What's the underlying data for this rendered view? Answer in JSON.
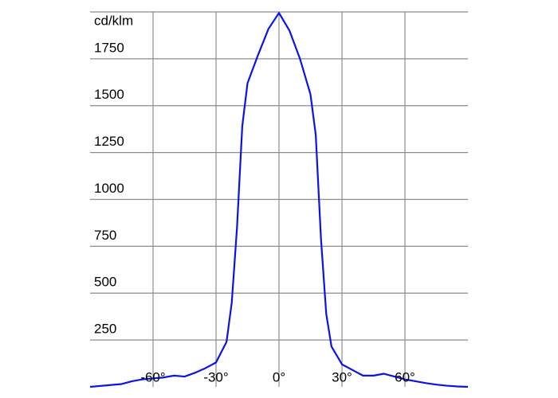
{
  "chart_data": {
    "type": "line",
    "ylabel": "cd/klm",
    "x": [
      -90,
      -85,
      -80,
      -75,
      -70,
      -65,
      -60,
      -55,
      -50,
      -45,
      -40,
      -35,
      -30,
      -25,
      -22.5,
      -20,
      -17.5,
      -15,
      -10,
      -5,
      0,
      5,
      10,
      15,
      17.5,
      20,
      22.5,
      25,
      30,
      35,
      40,
      45,
      50,
      55,
      60,
      65,
      70,
      75,
      80,
      85,
      90
    ],
    "values": [
      0,
      5,
      10,
      15,
      30,
      40,
      45,
      50,
      60,
      55,
      75,
      100,
      130,
      240,
      450,
      850,
      1390,
      1620,
      1770,
      1910,
      1995,
      1900,
      1750,
      1560,
      1345,
      790,
      390,
      215,
      120,
      90,
      60,
      60,
      70,
      55,
      40,
      30,
      20,
      12,
      6,
      2,
      0
    ],
    "color": "#0a14e6",
    "xlim": [
      -90,
      90
    ],
    "ylim": [
      0,
      2000
    ],
    "xticks": [
      {
        "value": -60,
        "label": "-60°"
      },
      {
        "value": -30,
        "label": "-30°"
      },
      {
        "value": 0,
        "label": "0°"
      },
      {
        "value": 30,
        "label": "30°"
      },
      {
        "value": 60,
        "label": "60°"
      }
    ],
    "yticks": [
      250,
      500,
      750,
      1000,
      1250,
      1500,
      1750
    ],
    "grid": true
  }
}
